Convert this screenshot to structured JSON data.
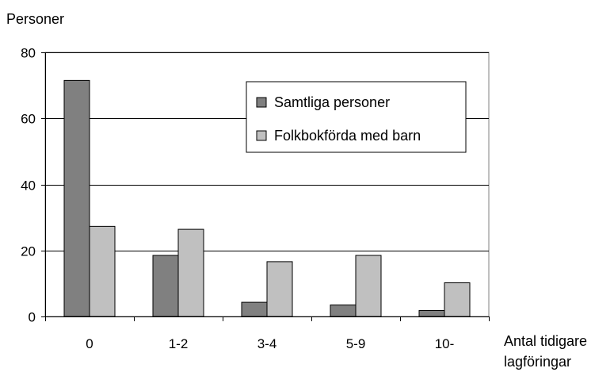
{
  "chart_data": {
    "type": "bar",
    "title": "",
    "ylabel": "Personer",
    "xlabel_lines": [
      "Antal tidigare",
      "lagföringar"
    ],
    "categories": [
      "0",
      "1-2",
      "3-4",
      "5-9",
      "10-"
    ],
    "ylim": [
      0,
      80
    ],
    "yticks": [
      0,
      20,
      40,
      60,
      80
    ],
    "grid": "horizontal",
    "legend_position": "top-right",
    "series": [
      {
        "name": "Samtliga personer",
        "values": [
          71.5,
          18.5,
          4.3,
          3.5,
          1.8
        ],
        "color": "#808080"
      },
      {
        "name": "Folkbokförda med barn",
        "values": [
          27.3,
          26.4,
          16.6,
          18.5,
          10.2
        ],
        "color": "#c0c0c0"
      }
    ]
  }
}
